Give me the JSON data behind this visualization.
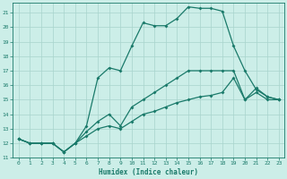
{
  "xlabel": "Humidex (Indice chaleur)",
  "bg_color": "#cceee8",
  "line_color": "#1a7a6a",
  "grid_color": "#a8d4cc",
  "xlim": [
    -0.5,
    23.5
  ],
  "ylim": [
    11,
    21.7
  ],
  "yticks": [
    11,
    12,
    13,
    14,
    15,
    16,
    17,
    18,
    19,
    20,
    21
  ],
  "xticks": [
    0,
    1,
    2,
    3,
    4,
    5,
    6,
    7,
    8,
    9,
    10,
    11,
    12,
    13,
    14,
    15,
    16,
    17,
    18,
    19,
    20,
    21,
    22,
    23
  ],
  "curve1_x": [
    0,
    1,
    2,
    3,
    4,
    5,
    6,
    7,
    8,
    9,
    10,
    11,
    12,
    13,
    14,
    15,
    16,
    17,
    18,
    19,
    20,
    21,
    22,
    23
  ],
  "curve1_y": [
    12.3,
    12.0,
    12.0,
    12.0,
    11.4,
    12.0,
    12.5,
    13.0,
    13.2,
    13.0,
    13.5,
    14.0,
    14.2,
    14.5,
    14.8,
    15.0,
    15.2,
    15.3,
    15.5,
    16.5,
    15.0,
    15.5,
    15.0,
    15.0
  ],
  "curve2_x": [
    0,
    1,
    2,
    3,
    4,
    5,
    6,
    7,
    8,
    9,
    10,
    11,
    12,
    13,
    14,
    15,
    16,
    17,
    18,
    19,
    20,
    21,
    22,
    23
  ],
  "curve2_y": [
    12.3,
    12.0,
    12.0,
    12.0,
    11.4,
    12.0,
    12.8,
    13.5,
    14.0,
    13.2,
    14.5,
    15.0,
    15.5,
    16.0,
    16.5,
    17.0,
    17.0,
    17.0,
    17.0,
    17.0,
    15.0,
    15.8,
    15.2,
    15.0
  ],
  "curve3_x": [
    0,
    1,
    2,
    3,
    4,
    5,
    6,
    7,
    8,
    9,
    10,
    11,
    12,
    13,
    14,
    15,
    16,
    17,
    18,
    19,
    20,
    21,
    22,
    23
  ],
  "curve3_y": [
    12.3,
    12.0,
    12.0,
    12.0,
    11.4,
    12.0,
    13.2,
    16.5,
    17.2,
    17.0,
    18.7,
    20.3,
    20.1,
    20.1,
    20.6,
    21.4,
    21.3,
    21.3,
    21.1,
    18.7,
    17.0,
    15.7,
    15.2,
    15.0
  ]
}
